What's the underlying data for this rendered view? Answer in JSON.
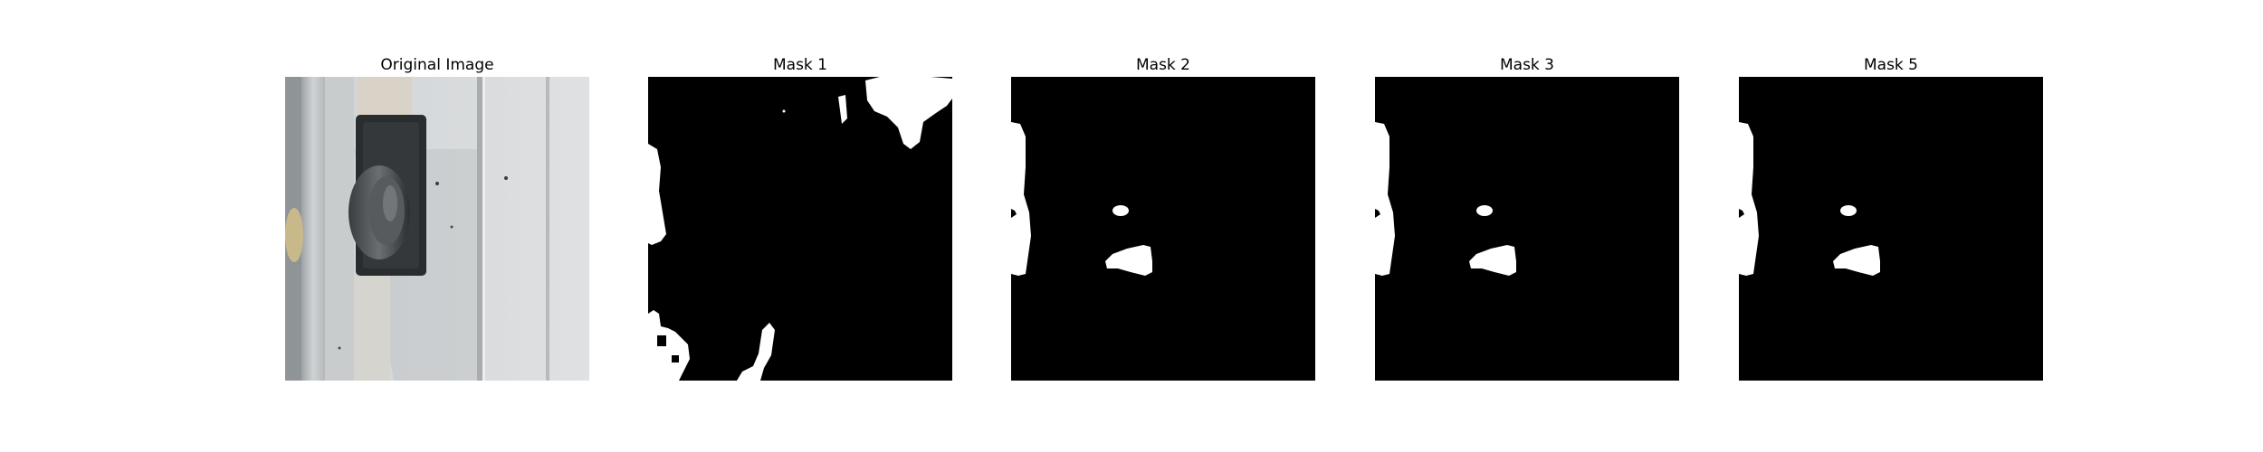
{
  "figure": {
    "panels": [
      {
        "title": "Original Image",
        "kind": "photo-door-latch"
      },
      {
        "title": "Mask 1",
        "kind": "mask"
      },
      {
        "title": "Mask 2",
        "kind": "mask"
      },
      {
        "title": "Mask 3",
        "kind": "mask"
      },
      {
        "title": "Mask 5",
        "kind": "mask"
      }
    ]
  },
  "colors": {
    "background": "#ffffff",
    "mask_bg": "#000000",
    "mask_fg": "#ffffff"
  }
}
